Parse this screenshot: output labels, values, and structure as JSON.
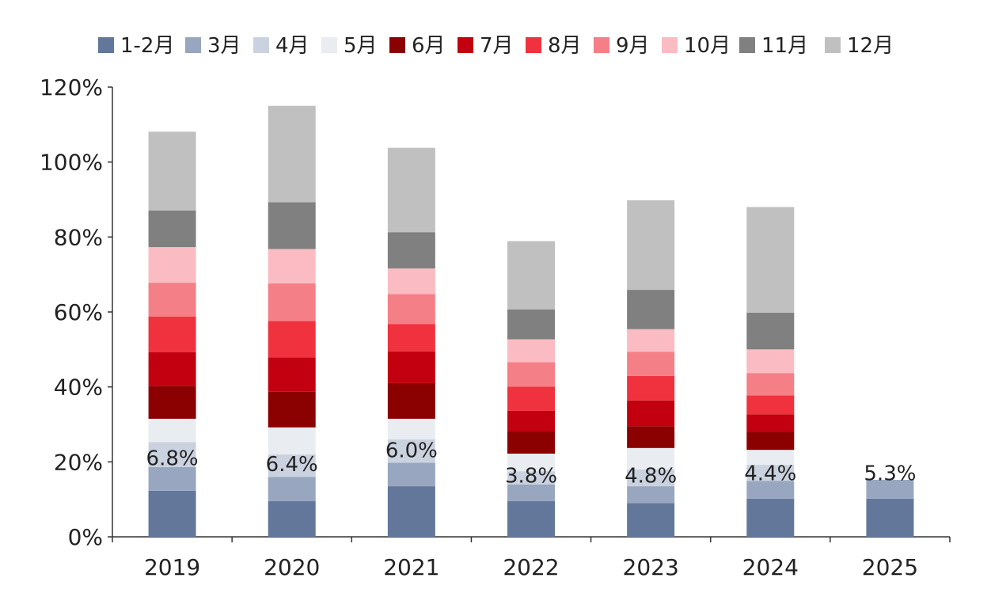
{
  "chart_data": {
    "type": "bar",
    "stacked": true,
    "categories": [
      "2019",
      "2020",
      "2021",
      "2022",
      "2023",
      "2024",
      "2025"
    ],
    "ylim": [
      0,
      120
    ],
    "yticks": [
      0,
      20,
      40,
      60,
      80,
      100,
      120
    ],
    "ytick_labels": [
      "0%",
      "20%",
      "40%",
      "60%",
      "80%",
      "100%",
      "120%"
    ],
    "legend_position": "top",
    "series": [
      {
        "name": "1-2月",
        "color": "#63779a",
        "values": [
          12.3,
          9.5,
          13.5,
          9.5,
          9.0,
          10.2,
          10.2
        ]
      },
      {
        "name": "3月",
        "color": "#98a7bf",
        "values": [
          6.3,
          6.5,
          6.3,
          4.5,
          4.5,
          4.7,
          5.0
        ]
      },
      {
        "name": "4月",
        "color": "#cbd2df",
        "values": [
          6.7,
          6.0,
          6.2,
          3.5,
          4.5,
          4.3,
          0
        ]
      },
      {
        "name": "5月",
        "color": "#e9ecf1",
        "values": [
          6.2,
          7.2,
          5.5,
          4.7,
          5.7,
          4.0,
          0
        ]
      },
      {
        "name": "6月",
        "color": "#8b0000",
        "values": [
          8.8,
          9.5,
          9.5,
          5.9,
          5.8,
          4.8,
          0
        ]
      },
      {
        "name": "7月",
        "color": "#c20010",
        "values": [
          9.0,
          9.2,
          8.5,
          5.5,
          6.9,
          4.7,
          0
        ]
      },
      {
        "name": "8月",
        "color": "#f0323e",
        "values": [
          9.5,
          9.7,
          7.3,
          6.5,
          6.5,
          5.0,
          0
        ]
      },
      {
        "name": "9月",
        "color": "#f57f87",
        "values": [
          9.0,
          10.0,
          8.0,
          6.5,
          6.5,
          6.0,
          0
        ]
      },
      {
        "name": "10月",
        "color": "#fabcc2",
        "values": [
          9.5,
          9.2,
          6.8,
          6.1,
          6.0,
          6.3,
          0
        ]
      },
      {
        "name": "11月",
        "color": "#808080",
        "values": [
          9.8,
          12.5,
          9.7,
          8.0,
          10.5,
          9.8,
          0
        ]
      },
      {
        "name": "12月",
        "color": "#c0c0c0",
        "values": [
          21.0,
          25.7,
          22.5,
          18.2,
          23.9,
          28.2,
          0
        ]
      }
    ],
    "annotations": [
      {
        "category": "2019",
        "text": "6.8%",
        "y": 21.2
      },
      {
        "category": "2020",
        "text": "6.4%",
        "y": 19.7
      },
      {
        "category": "2021",
        "text": "6.0%",
        "y": 23.3
      },
      {
        "category": "2022",
        "text": "3.8%",
        "y": 16.6
      },
      {
        "category": "2023",
        "text": "4.8%",
        "y": 16.6
      },
      {
        "category": "2024",
        "text": "4.4%",
        "y": 17.2
      },
      {
        "category": "2025",
        "text": "5.3%",
        "y": 17.2
      }
    ]
  }
}
